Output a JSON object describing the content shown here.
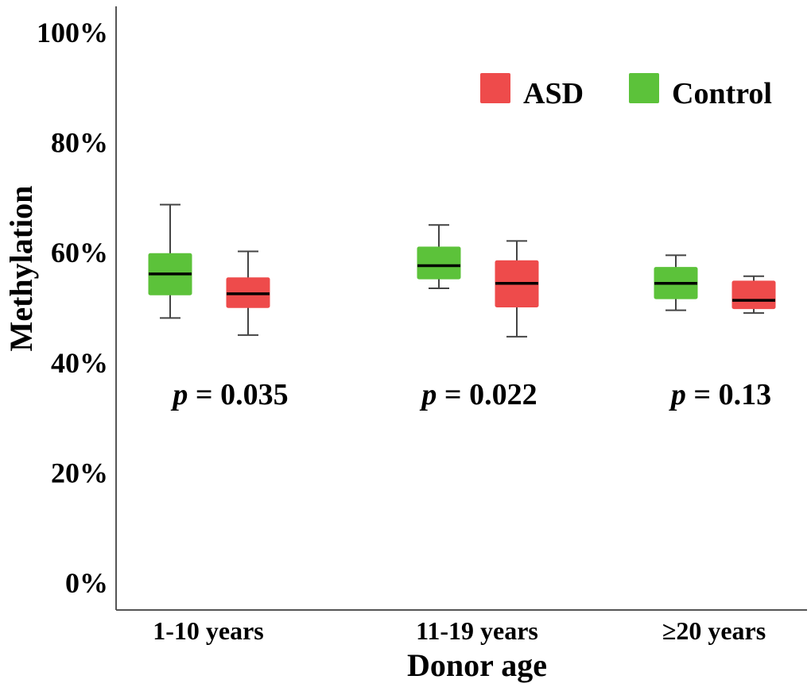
{
  "chart_data": {
    "type": "boxplot",
    "title": "",
    "xlabel": "Donor age",
    "ylabel": "Methylation",
    "ylim": [
      0,
      100
    ],
    "y_ticks": [
      0,
      20,
      40,
      60,
      80,
      100
    ],
    "y_tick_labels": [
      "0%",
      "20%",
      "40%",
      "60%",
      "80%",
      "100%"
    ],
    "grid": false,
    "legend_position": "top-right",
    "categories": [
      "1-10 years",
      "11-19 years",
      "≥20 years"
    ],
    "series": [
      {
        "name": "Control",
        "color": "#5cc23a",
        "boxes": [
          {
            "min": 48.0,
            "q1": 52.2,
            "median": 56.0,
            "q3": 59.7,
            "max": 68.6
          },
          {
            "min": 53.4,
            "q1": 55.1,
            "median": 57.5,
            "q3": 60.9,
            "max": 64.9
          },
          {
            "min": 49.4,
            "q1": 51.5,
            "median": 54.3,
            "q3": 57.2,
            "max": 59.4
          }
        ]
      },
      {
        "name": "ASD",
        "color": "#ee4b4b",
        "boxes": [
          {
            "min": 44.9,
            "q1": 49.9,
            "median": 52.4,
            "q3": 55.3,
            "max": 60.1
          },
          {
            "min": 44.6,
            "q1": 50.0,
            "median": 54.3,
            "q3": 58.4,
            "max": 62.0
          },
          {
            "min": 48.9,
            "q1": 49.7,
            "median": 51.2,
            "q3": 54.7,
            "max": 55.6
          }
        ]
      }
    ],
    "legend": [
      {
        "name": "ASD",
        "color": "#ee4b4b"
      },
      {
        "name": "Control",
        "color": "#5cc23a"
      }
    ],
    "annotations": [
      {
        "category": "1-10 years",
        "p_symbol": "p",
        "p_text": "= 0.035"
      },
      {
        "category": "11-19 years",
        "p_symbol": "p",
        "p_text": "= 0.022"
      },
      {
        "category": "≥20 years",
        "p_symbol": "p",
        "p_text": "= 0.13"
      }
    ]
  }
}
